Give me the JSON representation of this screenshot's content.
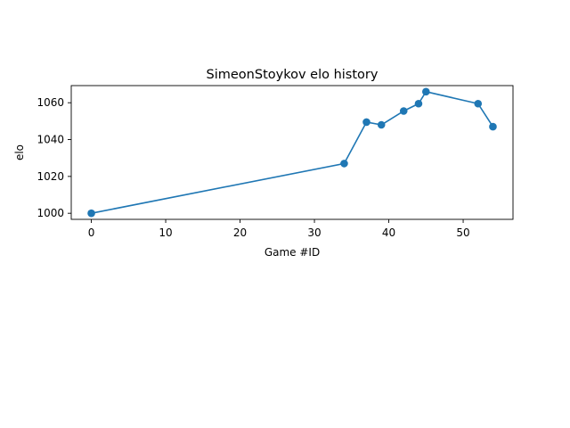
{
  "chart_data": {
    "type": "line",
    "title": "SimeonStoykov elo history",
    "xlabel": "Game #ID",
    "ylabel": "elo",
    "xlim": [
      -2.7,
      56.7
    ],
    "ylim": [
      996.7,
      1069.3
    ],
    "xticks": [
      0,
      10,
      20,
      30,
      40,
      50
    ],
    "yticks": [
      1000,
      1020,
      1040,
      1060
    ],
    "grid": false,
    "series": [
      {
        "color": "#1f77b4",
        "marker": "circle",
        "x": [
          0,
          34,
          37,
          39,
          42,
          44,
          45,
          52,
          54
        ],
        "y": [
          1000,
          1027,
          1049.5,
          1048,
          1055.5,
          1059.5,
          1066,
          1059.5,
          1047
        ]
      }
    ]
  }
}
